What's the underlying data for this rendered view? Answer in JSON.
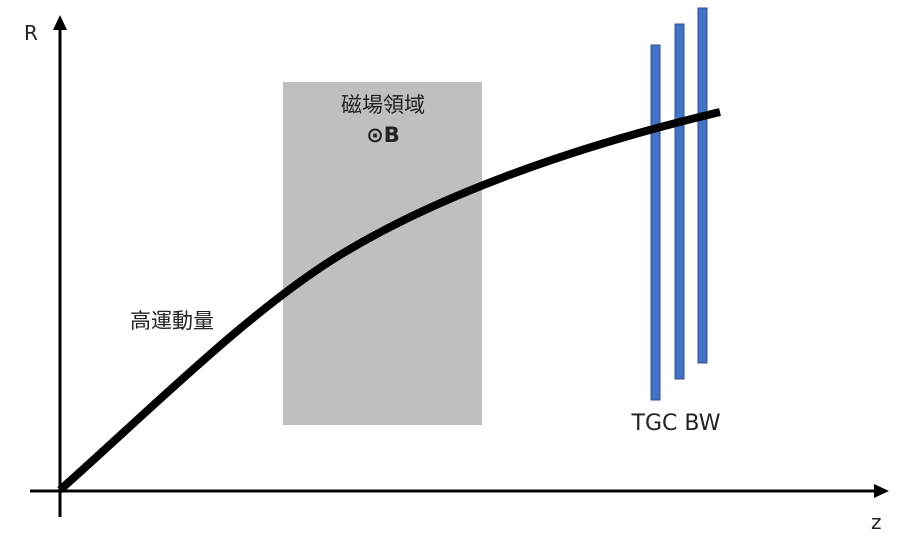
{
  "axes": {
    "y_label": "R",
    "x_label": "z"
  },
  "magnetic_field": {
    "title": "磁場領域",
    "symbol": "⊙B"
  },
  "trajectory": {
    "label": "高運動量"
  },
  "detector": {
    "label": "TGC BW",
    "plane_count": 3
  },
  "colors": {
    "field_region": "#bfbfbf",
    "detector": "#4472c4",
    "detector_edge": "#2f528f",
    "trajectory": "#000000",
    "axes": "#000000"
  }
}
